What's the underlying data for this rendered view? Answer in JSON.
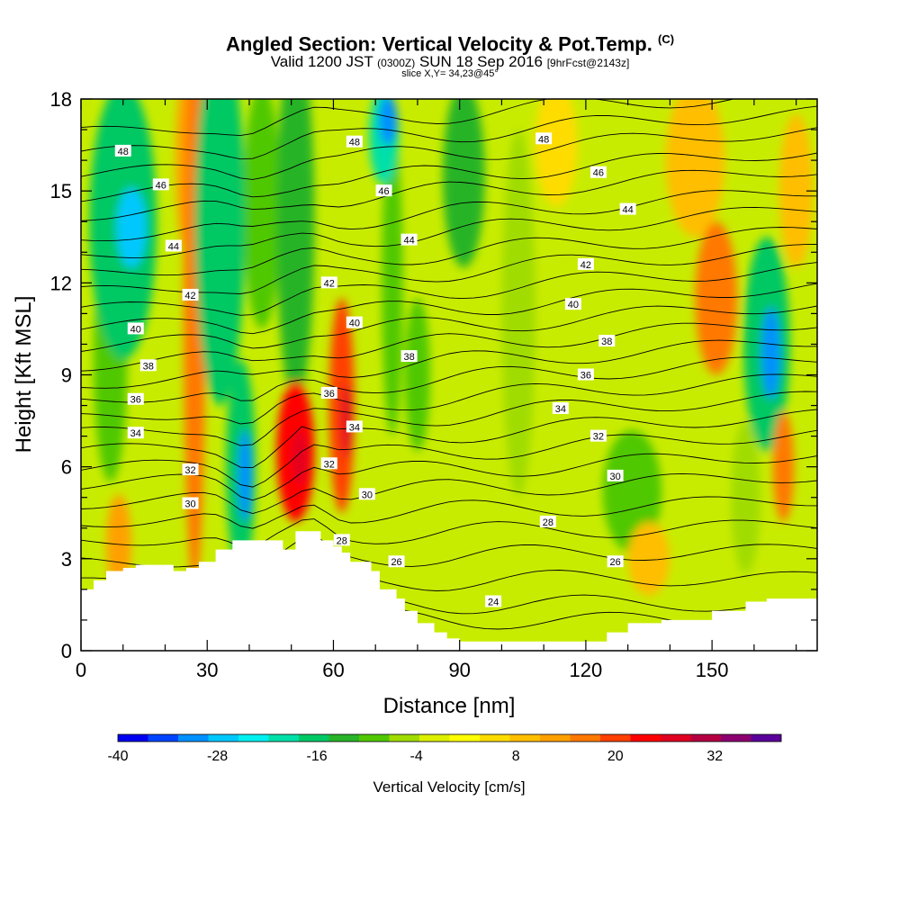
{
  "title": {
    "main": "Angled Section: Vertical Velocity & Pot.Temp.",
    "main_suffix": "(C)",
    "valid_prefix": "Valid 1200 JST",
    "valid_utc": "(0300Z)",
    "valid_date": "SUN 18 Sep 2016",
    "forecast": "[9hrFcst@2143z]",
    "slice": "slice X,Y= 34,23@45°"
  },
  "chart_data": {
    "type": "heatmap",
    "title": "Angled Section: Vertical Velocity & Pot.Temp.",
    "xlabel": "Distance [nm]",
    "ylabel": "Height [Kft MSL]",
    "xlim": [
      0,
      175
    ],
    "ylim": [
      0,
      18
    ],
    "x_ticks": [
      0,
      30,
      60,
      90,
      120,
      150
    ],
    "y_ticks": [
      0,
      3,
      6,
      9,
      12,
      15,
      18
    ],
    "colorbar": {
      "label": "Vertical Velocity [cm/s]",
      "tick_labels": [
        "-40",
        "-28",
        "-16",
        "-4",
        "8",
        "20",
        "32"
      ],
      "tick_values": [
        -40,
        -28,
        -16,
        -4,
        8,
        20,
        32
      ],
      "range": [
        -40,
        40
      ],
      "colors": [
        "#0000f0",
        "#0044ff",
        "#0090ff",
        "#00c8ff",
        "#00f0f0",
        "#00e0a8",
        "#00c864",
        "#28b428",
        "#50c800",
        "#a0dc00",
        "#dcf000",
        "#ffff00",
        "#ffdc00",
        "#ffbe00",
        "#ffa000",
        "#ff7800",
        "#ff4000",
        "#ff0000",
        "#e00020",
        "#b40040",
        "#8c0070",
        "#5a009a"
      ]
    },
    "terrain": {
      "x": [
        0,
        3,
        3,
        6,
        6,
        10,
        10,
        13,
        13,
        22,
        22,
        25,
        25,
        28,
        28,
        32,
        32,
        36,
        36,
        48,
        48,
        51,
        51,
        55,
        55,
        57,
        57,
        60,
        60,
        62,
        62,
        64,
        64,
        69,
        69,
        71,
        71,
        75,
        75,
        77,
        77,
        80,
        80,
        84,
        84,
        87,
        87,
        90,
        90,
        93,
        93,
        98,
        98,
        125,
        125,
        130,
        130,
        138,
        138,
        143,
        143,
        150,
        150,
        158,
        158,
        163,
        163,
        175
      ],
      "height": [
        2.0,
        2.0,
        2.3,
        2.3,
        2.6,
        2.6,
        2.7,
        2.7,
        2.8,
        2.8,
        2.6,
        2.6,
        2.7,
        2.7,
        2.9,
        2.9,
        3.3,
        3.3,
        3.6,
        3.6,
        3.3,
        3.3,
        3.9,
        3.9,
        3.9,
        3.9,
        3.6,
        3.6,
        3.4,
        3.4,
        3.2,
        3.2,
        2.9,
        2.9,
        2.6,
        2.6,
        2.0,
        2.0,
        1.7,
        1.7,
        1.3,
        1.3,
        0.9,
        0.9,
        0.6,
        0.6,
        0.4,
        0.4,
        0.3,
        0.3,
        0.3,
        0.3,
        0.3,
        0.3,
        0.6,
        0.6,
        0.9,
        0.9,
        1.0,
        1.0,
        1.0,
        1.0,
        1.3,
        1.3,
        1.6,
        1.6,
        1.7,
        1.7
      ]
    },
    "velocity_features": [
      {
        "x": 10,
        "z": 14.0,
        "rx": 8,
        "rz": 4.5,
        "value": -18
      },
      {
        "x": 12,
        "z": 13.8,
        "rx": 3.5,
        "rz": 1.3,
        "value": -28
      },
      {
        "x": 7,
        "z": 9.5,
        "rx": 4,
        "rz": 4,
        "value": -10
      },
      {
        "x": 27,
        "z": 11.0,
        "rx": 2.6,
        "rz": 9,
        "value": 15
      },
      {
        "x": 25,
        "z": 16.0,
        "rx": 2.5,
        "rz": 3,
        "value": 14
      },
      {
        "x": 9,
        "z": 3.5,
        "rx": 3,
        "rz": 1.6,
        "value": 14
      },
      {
        "x": 33,
        "z": 14.0,
        "rx": 6,
        "rz": 6,
        "value": -16
      },
      {
        "x": 38,
        "z": 6.0,
        "rx": 3.5,
        "rz": 3.5,
        "value": -18
      },
      {
        "x": 39,
        "z": 5.7,
        "rx": 1.6,
        "rz": 1.5,
        "value": -30
      },
      {
        "x": 43,
        "z": 14.5,
        "rx": 4.5,
        "rz": 4,
        "value": -8
      },
      {
        "x": 51,
        "z": 14.0,
        "rx": 4.5,
        "rz": 6,
        "value": -13
      },
      {
        "x": 51,
        "z": 6.5,
        "rx": 4.5,
        "rz": 2.3,
        "value": 22
      },
      {
        "x": 52,
        "z": 6.3,
        "rx": 1.6,
        "rz": 0.9,
        "value": 29
      },
      {
        "x": 62,
        "z": 8.0,
        "rx": 3,
        "rz": 3.5,
        "value": 20
      },
      {
        "x": 63,
        "z": 7.5,
        "rx": 1.2,
        "rz": 1.2,
        "value": 27
      },
      {
        "x": 72,
        "z": 16.8,
        "rx": 3.5,
        "rz": 1.6,
        "value": -20
      },
      {
        "x": 73,
        "z": 17.3,
        "rx": 2.2,
        "rz": 0.8,
        "value": -30
      },
      {
        "x": 74,
        "z": 12.0,
        "rx": 2.5,
        "rz": 5,
        "value": -8
      },
      {
        "x": 80,
        "z": 9.0,
        "rx": 3,
        "rz": 2.5,
        "value": -8
      },
      {
        "x": 91,
        "z": 15.5,
        "rx": 5,
        "rz": 3,
        "value": -12
      },
      {
        "x": 104,
        "z": 11.0,
        "rx": 4,
        "rz": 6,
        "value": -5
      },
      {
        "x": 113,
        "z": 16.5,
        "rx": 5,
        "rz": 2,
        "value": 6
      },
      {
        "x": 131,
        "z": 5.2,
        "rx": 7,
        "rz": 2.0,
        "value": -8
      },
      {
        "x": 135,
        "z": 3.0,
        "rx": 5,
        "rz": 1.2,
        "value": 8
      },
      {
        "x": 151,
        "z": 11.5,
        "rx": 5,
        "rz": 2.5,
        "value": 17
      },
      {
        "x": 146,
        "z": 16.0,
        "rx": 7,
        "rz": 2.5,
        "value": 10
      },
      {
        "x": 163,
        "z": 10.0,
        "rx": 5.5,
        "rz": 3.5,
        "value": -16
      },
      {
        "x": 164,
        "z": 9.7,
        "rx": 2.2,
        "rz": 1.5,
        "value": -30
      },
      {
        "x": 167,
        "z": 6.0,
        "rx": 2.5,
        "rz": 1.8,
        "value": 18
      },
      {
        "x": 158,
        "z": 5.0,
        "rx": 3.5,
        "rz": 2.5,
        "value": -7
      },
      {
        "x": 170,
        "z": 15.0,
        "rx": 4,
        "rz": 2.5,
        "value": 10
      }
    ],
    "isentrope_labels": [
      {
        "x": 10,
        "z": 16.3,
        "text": "48"
      },
      {
        "x": 19,
        "z": 15.2,
        "text": "46"
      },
      {
        "x": 22,
        "z": 13.2,
        "text": "44"
      },
      {
        "x": 26,
        "z": 11.6,
        "text": "42"
      },
      {
        "x": 13,
        "z": 10.5,
        "text": "40"
      },
      {
        "x": 16,
        "z": 9.3,
        "text": "38"
      },
      {
        "x": 13,
        "z": 8.2,
        "text": "36"
      },
      {
        "x": 13,
        "z": 7.1,
        "text": "34"
      },
      {
        "x": 26,
        "z": 5.9,
        "text": "32"
      },
      {
        "x": 26,
        "z": 4.8,
        "text": "30"
      },
      {
        "x": 65,
        "z": 16.6,
        "text": "48"
      },
      {
        "x": 72,
        "z": 15.0,
        "text": "46"
      },
      {
        "x": 78,
        "z": 13.4,
        "text": "44"
      },
      {
        "x": 59,
        "z": 12.0,
        "text": "42"
      },
      {
        "x": 65,
        "z": 10.7,
        "text": "40"
      },
      {
        "x": 78,
        "z": 9.6,
        "text": "38"
      },
      {
        "x": 59,
        "z": 8.4,
        "text": "36"
      },
      {
        "x": 65,
        "z": 7.3,
        "text": "34"
      },
      {
        "x": 59,
        "z": 6.1,
        "text": "32"
      },
      {
        "x": 68,
        "z": 5.1,
        "text": "30"
      },
      {
        "x": 62,
        "z": 3.6,
        "text": "28"
      },
      {
        "x": 75,
        "z": 2.9,
        "text": "26"
      },
      {
        "x": 110,
        "z": 16.7,
        "text": "48"
      },
      {
        "x": 123,
        "z": 15.6,
        "text": "46"
      },
      {
        "x": 130,
        "z": 14.4,
        "text": "44"
      },
      {
        "x": 120,
        "z": 12.6,
        "text": "42"
      },
      {
        "x": 117,
        "z": 11.3,
        "text": "40"
      },
      {
        "x": 125,
        "z": 10.1,
        "text": "38"
      },
      {
        "x": 120,
        "z": 9.0,
        "text": "36"
      },
      {
        "x": 114,
        "z": 7.9,
        "text": "34"
      },
      {
        "x": 123,
        "z": 7.0,
        "text": "32"
      },
      {
        "x": 127,
        "z": 5.7,
        "text": "30"
      },
      {
        "x": 111,
        "z": 4.2,
        "text": "28"
      },
      {
        "x": 127,
        "z": 2.9,
        "text": "26"
      },
      {
        "x": 98,
        "z": 1.6,
        "text": "24"
      }
    ],
    "isentropes": {
      "levels": [
        24,
        25,
        26,
        27,
        28,
        29,
        30,
        31,
        32,
        33,
        34,
        35,
        36,
        37,
        38,
        39,
        40,
        41,
        42,
        43,
        44,
        45,
        46,
        47,
        48,
        49,
        50
      ],
      "left_heights": [
        1.2,
        1.6,
        2.2,
        2.9,
        3.6,
        4.2,
        4.8,
        5.4,
        5.9,
        6.5,
        7.1,
        7.6,
        8.2,
        8.7,
        9.3,
        9.9,
        10.5,
        11.1,
        11.7,
        12.3,
        12.9,
        13.5,
        14.2,
        14.8,
        15.5,
        16.2,
        16.9
      ],
      "right_heights": [
        0.9,
        1.5,
        2.4,
        3.3,
        4.1,
        4.9,
        5.7,
        6.4,
        7.1,
        7.7,
        8.3,
        8.9,
        9.5,
        10.1,
        10.7,
        11.3,
        11.9,
        12.5,
        13.1,
        13.7,
        14.4,
        15.0,
        15.7,
        16.3,
        17.0,
        17.6,
        18.2
      ]
    }
  }
}
